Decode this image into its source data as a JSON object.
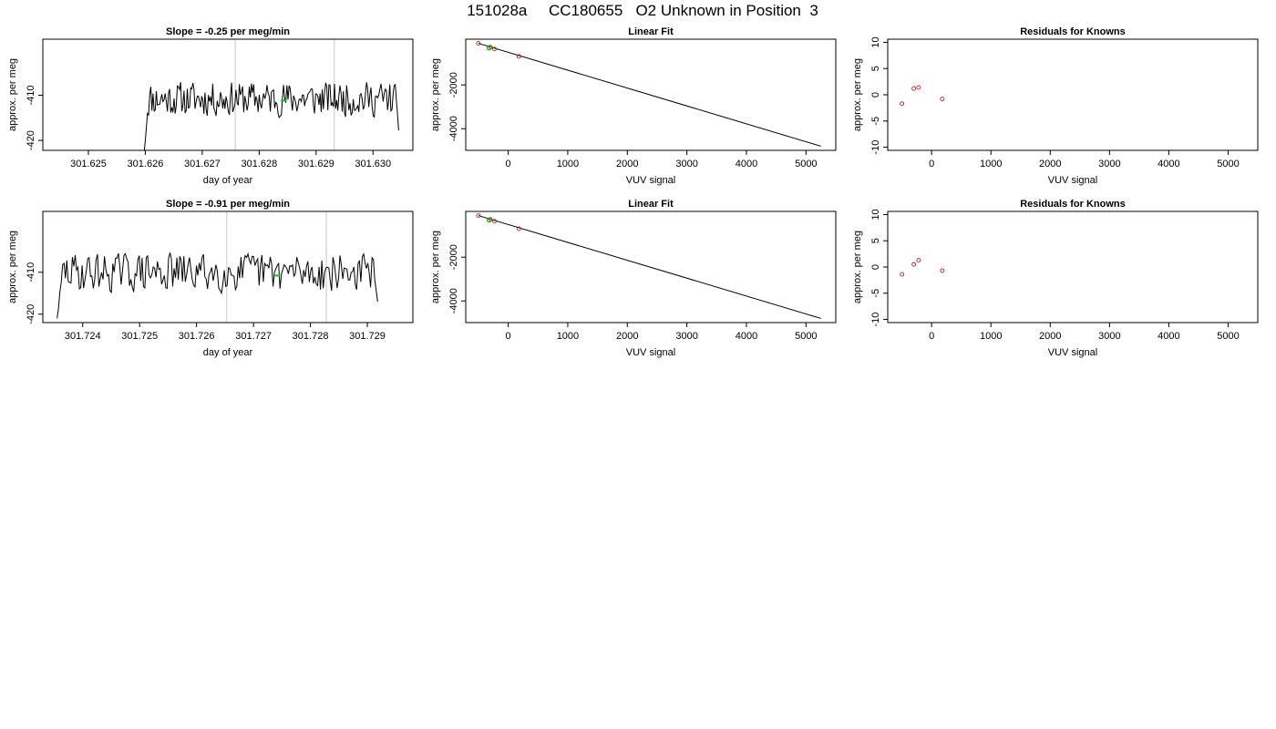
{
  "page_title": "151028a     CC180655   O2 Unknown in Position  3",
  "colors": {
    "line": "#000000",
    "vline": "#c8c8c8",
    "known_point": "#b22222",
    "unknown_point": "#00cc00"
  },
  "chart_data": [
    {
      "id": "row1-time",
      "type": "line",
      "title": "Slope =  -0.25  per meg/min",
      "xlabel": "day of year",
      "ylabel": "approx. per meg",
      "xlim": [
        301.6242,
        301.6307
      ],
      "ylim": [
        -422.2,
        -397.6
      ],
      "xticks": [
        301.625,
        301.626,
        301.627,
        301.628,
        301.629,
        301.63
      ],
      "xtick_labels": [
        "301.625",
        "301.626",
        "301.627",
        "301.628",
        "301.629",
        "301.630"
      ],
      "yticks": [
        -420,
        -410
      ],
      "ytick_labels": [
        "-420",
        "-410"
      ],
      "vlines": [
        301.62758,
        301.62932
      ],
      "series_start": 301.62598,
      "series_end": 301.63045,
      "series_seed": 11,
      "series_mean": -410.8,
      "series_amp": 3.3,
      "series_start_y": -422.5,
      "highlight": {
        "x": 301.62843,
        "y": -411.2
      }
    },
    {
      "id": "row1-fit",
      "type": "scatter",
      "title": "Linear Fit",
      "xlabel": "VUV signal",
      "ylabel": "approx. per meg",
      "xlim": [
        -713,
        5500
      ],
      "ylim": [
        -4990,
        90
      ],
      "xticks": [
        0,
        1000,
        2000,
        3000,
        4000,
        5000
      ],
      "xtick_labels": [
        "0",
        "1000",
        "2000",
        "3000",
        "4000",
        "5000"
      ],
      "yticks": [
        -4000,
        -2000
      ],
      "ytick_labels": [
        "-4000",
        "-2000"
      ],
      "fit_line": {
        "x": [
          -500,
          5250
        ],
        "y": [
          -100,
          -4800
        ]
      },
      "known_points": {
        "x": [
          -500,
          -300,
          -230,
          180
        ],
        "y": [
          -100,
          -270,
          -360,
          -700
        ]
      },
      "unknown_points": {
        "x": [
          -320
        ],
        "y": [
          -310
        ]
      }
    },
    {
      "id": "row1-resid",
      "type": "scatter",
      "title": "Residuals for Knowns",
      "xlabel": "VUV signal",
      "ylabel": "approx. per meg",
      "xlim": [
        -740,
        5500
      ],
      "ylim": [
        -10.6,
        10.6
      ],
      "xticks": [
        0,
        1000,
        2000,
        3000,
        4000,
        5000
      ],
      "xtick_labels": [
        "0",
        "1000",
        "2000",
        "3000",
        "4000",
        "5000"
      ],
      "yticks": [
        -10,
        -5,
        0,
        5,
        10
      ],
      "ytick_labels": [
        "-10",
        "-5",
        "0",
        "5",
        "10"
      ],
      "known_points": {
        "x": [
          -500,
          -300,
          -220,
          180
        ],
        "y": [
          -1.7,
          1.2,
          1.4,
          -0.8
        ]
      }
    },
    {
      "id": "row2-time",
      "type": "line",
      "title": "Slope =  -0.91  per meg/min",
      "xlabel": "day of year",
      "ylabel": "approx. per meg",
      "xlim": [
        301.7233,
        301.7298
      ],
      "ylim": [
        -422.0,
        -395.5
      ],
      "xticks": [
        301.724,
        301.725,
        301.726,
        301.727,
        301.728,
        301.729
      ],
      "xtick_labels": [
        "301.724",
        "301.725",
        "301.726",
        "301.727",
        "301.728",
        "301.729"
      ],
      "yticks": [
        -420,
        -410
      ],
      "ytick_labels": [
        "-420",
        "-410"
      ],
      "vlines": [
        301.72653,
        301.72828
      ],
      "series_start": 301.72355,
      "series_end": 301.72918,
      "series_seed": 29,
      "series_mean": -410.0,
      "series_amp": 4.0,
      "series_start_y": -421.0,
      "highlight": {
        "x": 301.72742,
        "y": -410.8
      }
    },
    {
      "id": "row2-fit",
      "type": "scatter",
      "title": "Linear Fit",
      "xlabel": "VUV signal",
      "ylabel": "approx. per meg",
      "xlim": [
        -713,
        5500
      ],
      "ylim": [
        -4990,
        90
      ],
      "xticks": [
        0,
        1000,
        2000,
        3000,
        4000,
        5000
      ],
      "xtick_labels": [
        "0",
        "1000",
        "2000",
        "3000",
        "4000",
        "5000"
      ],
      "yticks": [
        -4000,
        -2000
      ],
      "ytick_labels": [
        "-4000",
        "-2000"
      ],
      "fit_line": {
        "x": [
          -500,
          5250
        ],
        "y": [
          -100,
          -4800
        ]
      },
      "known_points": {
        "x": [
          -500,
          -300,
          -230,
          180
        ],
        "y": [
          -100,
          -270,
          -360,
          -700
        ]
      },
      "unknown_points": {
        "x": [
          -320
        ],
        "y": [
          -310
        ]
      }
    },
    {
      "id": "row2-resid",
      "type": "scatter",
      "title": "Residuals for Knowns",
      "xlabel": "VUV signal",
      "ylabel": "approx. per meg",
      "xlim": [
        -740,
        5500
      ],
      "ylim": [
        -10.6,
        10.6
      ],
      "xticks": [
        0,
        1000,
        2000,
        3000,
        4000,
        5000
      ],
      "xtick_labels": [
        "0",
        "1000",
        "2000",
        "3000",
        "4000",
        "5000"
      ],
      "yticks": [
        -10,
        -5,
        0,
        5,
        10
      ],
      "ytick_labels": [
        "-10",
        "-5",
        "0",
        "5",
        "10"
      ],
      "known_points": {
        "x": [
          -500,
          -300,
          -220,
          180
        ],
        "y": [
          -1.4,
          0.5,
          1.3,
          -0.7
        ]
      }
    }
  ]
}
